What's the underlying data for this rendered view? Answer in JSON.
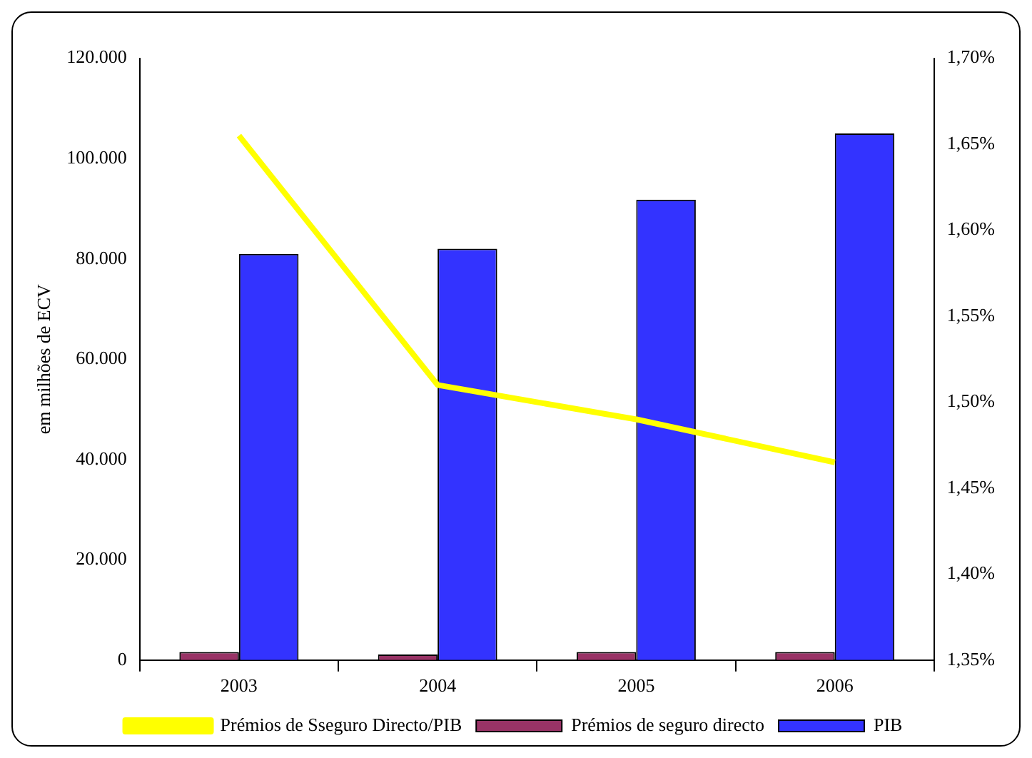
{
  "chart_data": {
    "type": "bar",
    "ylabel": "em milhões de ECV",
    "categories": [
      "2003",
      "2004",
      "2005",
      "2006"
    ],
    "series": [
      {
        "name": "Prémios de seguro directo",
        "color": "#993366",
        "values": [
          1600,
          1100,
          1600,
          1600
        ]
      },
      {
        "name": "PIB",
        "color": "#3333ff",
        "values": [
          81000,
          82000,
          91800,
          105000
        ]
      },
      {
        "name": "Prémios de Sseguro Directo/PIB",
        "type": "line",
        "axis": "y2",
        "color": "#ffff00",
        "values": [
          1.655,
          1.51,
          1.49,
          1.465
        ]
      }
    ],
    "ylim": [
      0,
      120000
    ],
    "yticks": [
      {
        "value": 0,
        "label": "0"
      },
      {
        "value": 20000,
        "label": "20.000"
      },
      {
        "value": 40000,
        "label": "40.000"
      },
      {
        "value": 60000,
        "label": "60.000"
      },
      {
        "value": 80000,
        "label": "80.000"
      },
      {
        "value": 100000,
        "label": "100.000"
      },
      {
        "value": 120000,
        "label": "120.000"
      }
    ],
    "y2lim": [
      1.35,
      1.7
    ],
    "y2ticks": [
      {
        "value": 1.35,
        "label": "1,35%"
      },
      {
        "value": 1.4,
        "label": "1,40%"
      },
      {
        "value": 1.45,
        "label": "1,45%"
      },
      {
        "value": 1.5,
        "label": "1,50%"
      },
      {
        "value": 1.55,
        "label": "1,55%"
      },
      {
        "value": 1.6,
        "label": "1,60%"
      },
      {
        "value": 1.65,
        "label": "1,65%"
      },
      {
        "value": 1.7,
        "label": "1,70%"
      }
    ],
    "grid": false,
    "legend": "bottom",
    "marker": "none"
  }
}
